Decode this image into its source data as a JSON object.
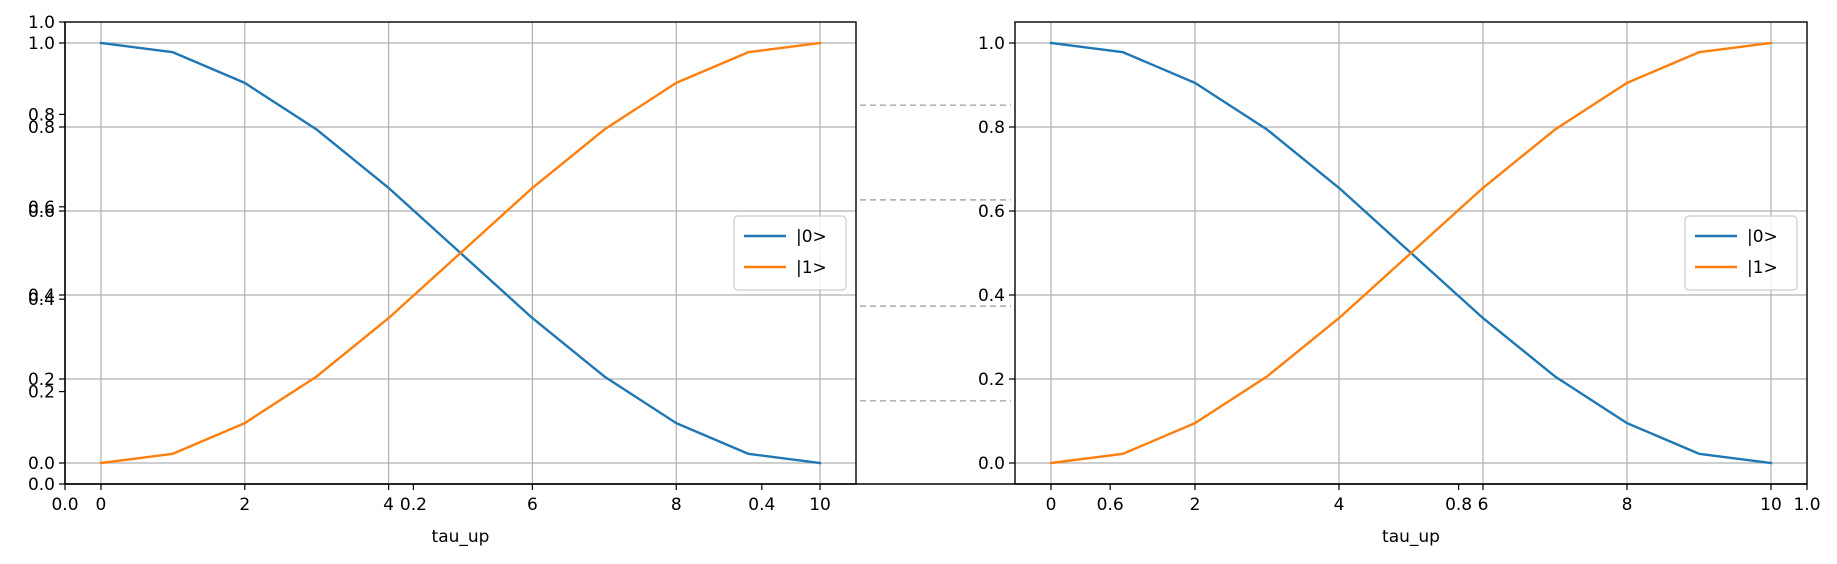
{
  "chart_data": {
    "type": "line",
    "background_axes": {
      "xlim": [
        0,
        1
      ],
      "ylim": [
        0,
        1
      ],
      "xticks": [
        "0.0",
        "0.2",
        "0.4",
        "0.6",
        "0.8",
        "1.0"
      ],
      "yticks": [
        "0.0",
        "0.2",
        "0.4",
        "0.6",
        "0.8",
        "1.0"
      ]
    },
    "panels": [
      {
        "xlabel": "tau_up",
        "xlim": [
          -0.5,
          10.5
        ],
        "ylim": [
          -0.05,
          1.05
        ],
        "xticks": [
          "0",
          "2",
          "4",
          "6",
          "8",
          "10"
        ],
        "yticks": [
          "0.0",
          "0.2",
          "0.4",
          "0.6",
          "0.8",
          "1.0"
        ],
        "grid": true,
        "legend_position": "center-right",
        "x": [
          0,
          1,
          2,
          3,
          4,
          5,
          6,
          7,
          8,
          9,
          10
        ],
        "series": [
          {
            "name": "|0>",
            "color": "#1f77b4",
            "values": [
              1.0,
              0.978,
              0.905,
              0.794,
              0.655,
              0.5,
              0.345,
              0.206,
              0.095,
              0.022,
              0.0
            ]
          },
          {
            "name": "|1>",
            "color": "#ff7f0e",
            "values": [
              0.0,
              0.022,
              0.095,
              0.206,
              0.345,
              0.5,
              0.655,
              0.794,
              0.905,
              0.978,
              1.0
            ]
          }
        ]
      },
      {
        "xlabel": "tau_up",
        "xlim": [
          -0.5,
          10.5
        ],
        "ylim": [
          -0.05,
          1.05
        ],
        "xticks": [
          "0",
          "2",
          "4",
          "6",
          "8",
          "10"
        ],
        "yticks": [
          "0.0",
          "0.2",
          "0.4",
          "0.6",
          "0.8",
          "1.0"
        ],
        "grid": true,
        "legend_position": "center-right",
        "x": [
          0,
          1,
          2,
          3,
          4,
          5,
          6,
          7,
          8,
          9,
          10
        ],
        "series": [
          {
            "name": "|0>",
            "color": "#1f77b4",
            "values": [
              1.0,
              0.978,
              0.905,
              0.794,
              0.655,
              0.5,
              0.345,
              0.206,
              0.095,
              0.022,
              0.0
            ]
          },
          {
            "name": "|1>",
            "color": "#ff7f0e",
            "values": [
              0.0,
              0.022,
              0.095,
              0.206,
              0.345,
              0.5,
              0.655,
              0.794,
              0.905,
              0.978,
              1.0
            ]
          }
        ]
      }
    ]
  }
}
